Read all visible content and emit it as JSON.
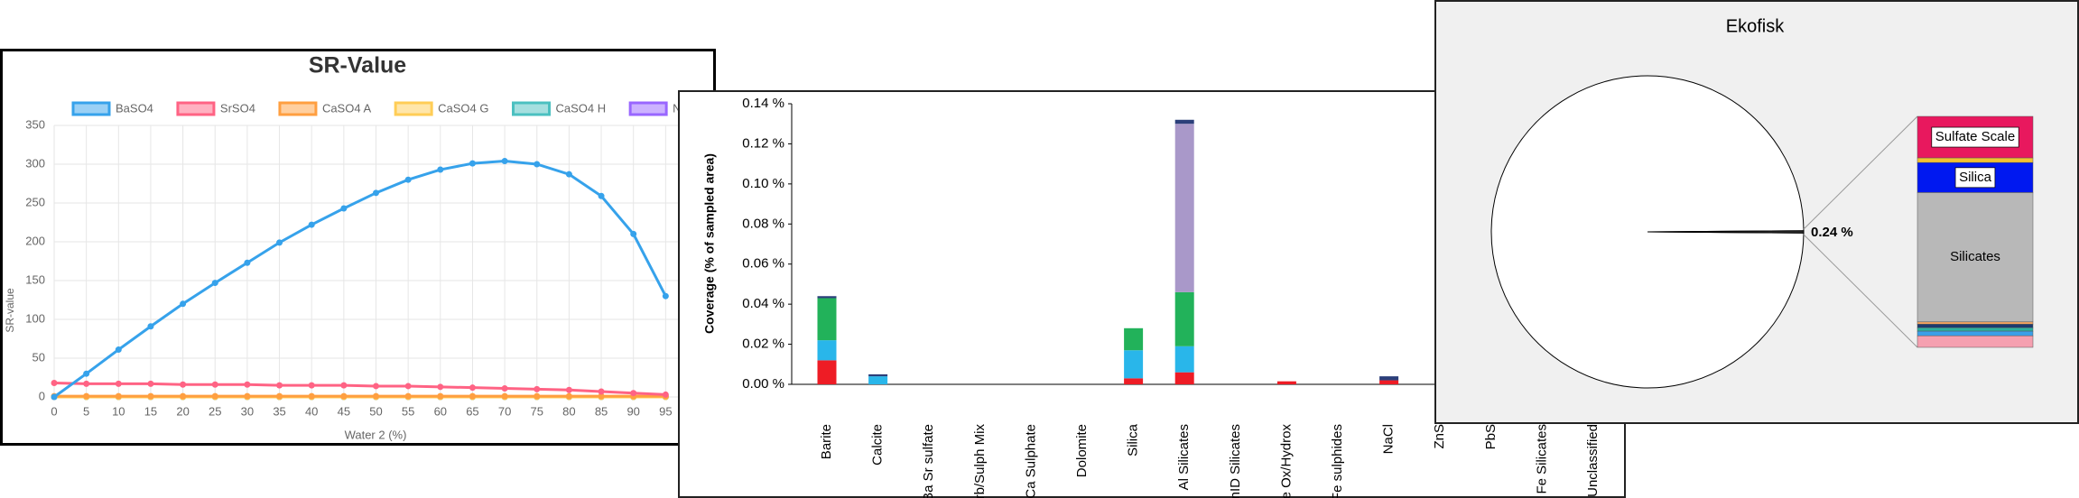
{
  "chart_data": [
    {
      "type": "line",
      "title": "SR-Value",
      "xlabel": "Water 2 (%)",
      "ylabel": "SR-value",
      "x": [
        0,
        5,
        10,
        15,
        20,
        25,
        30,
        35,
        40,
        45,
        50,
        55,
        60,
        65,
        70,
        75,
        80,
        85,
        90,
        95
      ],
      "xlim": [
        0,
        100
      ],
      "xticks": [
        0,
        5,
        10,
        15,
        20,
        25,
        30,
        35,
        40,
        45,
        50,
        55,
        60,
        65,
        70,
        75,
        80,
        85,
        90,
        95
      ],
      "ylim": [
        0,
        350
      ],
      "yticks": [
        0,
        50,
        100,
        150,
        200,
        250,
        300,
        350
      ],
      "grid": true,
      "legend": "top",
      "series": [
        {
          "name": "BaSO4",
          "color": "#36a2eb",
          "values": [
            0,
            30,
            61,
            91,
            120,
            147,
            173,
            199,
            222,
            243,
            263,
            280,
            293,
            301,
            304,
            300,
            287,
            259,
            210,
            130
          ]
        },
        {
          "name": "SrSO4",
          "color": "#ff6384",
          "values": [
            18,
            17,
            17,
            17,
            16,
            16,
            16,
            15,
            15,
            15,
            14,
            14,
            13,
            12,
            11,
            10,
            9,
            7,
            5,
            3
          ]
        },
        {
          "name": "CaSO4 A",
          "color": "#ff9f40",
          "values": [
            1,
            1,
            1,
            1,
            1,
            1,
            1,
            1,
            1,
            1,
            1,
            1,
            1,
            1,
            1,
            1,
            1,
            1,
            1,
            1
          ]
        },
        {
          "name": "CaSO4 G",
          "color": "#ffcd56",
          "values": [
            0,
            0,
            0,
            0,
            0,
            0,
            0,
            0,
            0,
            0,
            0,
            0,
            0,
            0,
            0,
            0,
            0,
            0,
            0,
            0
          ]
        },
        {
          "name": "CaSO4 H",
          "color": "#4bc0c0",
          "values": [
            0,
            0,
            0,
            0,
            0,
            0,
            0,
            0,
            0,
            0,
            0,
            0,
            0,
            0,
            0,
            0,
            0,
            0,
            0,
            0
          ]
        },
        {
          "name": "NaCl",
          "color": "#9966ff",
          "values": [
            0,
            0,
            0,
            0,
            0,
            0,
            0,
            0,
            0,
            0,
            0,
            0,
            0,
            0,
            0,
            0,
            0,
            0,
            0,
            0
          ]
        }
      ]
    },
    {
      "type": "bar",
      "stacked": true,
      "ylabel": "Coverage (% of sampled area)",
      "categories": [
        "Barite",
        "Calcite",
        "Ba Sr sulfate",
        "Carb/Sulph Mix",
        "Ca Sulphate",
        "Dolomite",
        "Silica",
        "Al Silicates",
        "UnID Silicates",
        "Fe Ox/Hydrox",
        "Fe sulphides",
        "NaCl",
        "ZnS",
        "PbS",
        "Fe Silicates",
        "Unclassified"
      ],
      "ylim": [
        0,
        0.14
      ],
      "yticks": [
        {
          "value": 0,
          "label": "0.00 %"
        },
        {
          "value": 0.02,
          "label": "0.02 %"
        },
        {
          "value": 0.04,
          "label": "0.04 %"
        },
        {
          "value": 0.06,
          "label": "0.06 %"
        },
        {
          "value": 0.08,
          "label": "0.08 %"
        },
        {
          "value": 0.1,
          "label": "0.10 %"
        },
        {
          "value": 0.12,
          "label": "0.12 %"
        },
        {
          "value": 0.14,
          "label": "0.14 %"
        }
      ],
      "series": [
        {
          "color": "#ee1c25",
          "values": [
            0.012,
            0,
            0,
            0,
            0,
            0,
            0.003,
            0.006,
            0,
            0.0015,
            0,
            0.002,
            0,
            0,
            0,
            0
          ]
        },
        {
          "color": "#29b6ea",
          "values": [
            0.01,
            0.004,
            0,
            0,
            0,
            0,
            0.014,
            0.013,
            0,
            0,
            0,
            0,
            0,
            0,
            0,
            0
          ]
        },
        {
          "color": "#22b25a",
          "values": [
            0.021,
            0,
            0,
            0,
            0,
            0,
            0.011,
            0.027,
            0,
            0,
            0,
            0,
            0,
            0,
            0,
            0
          ]
        },
        {
          "color": "#a998c9",
          "values": [
            0,
            0,
            0,
            0,
            0,
            0,
            0,
            0.084,
            0,
            0,
            0,
            0,
            0,
            0,
            0,
            0
          ]
        },
        {
          "color": "#2b3f7a",
          "values": [
            0.001,
            0.001,
            0,
            0,
            0,
            0,
            0,
            0.002,
            0,
            0,
            0,
            0.002,
            0,
            0,
            0,
            0
          ]
        }
      ]
    },
    {
      "type": "pie",
      "title": "Ekofisk",
      "values": [
        99.76,
        0.24
      ],
      "value_labels": [
        null,
        "0.24 %"
      ],
      "colors": [
        "#ffffff",
        "#333333"
      ],
      "breakdown": {
        "labels": [
          "Sulfate Scale",
          null,
          "Silica",
          "Silicates",
          null,
          null,
          null,
          null,
          null
        ],
        "values": [
          18,
          2,
          13,
          56,
          1,
          1.5,
          1.5,
          2,
          5
        ],
        "colors": [
          "#e8185e",
          "#f2c230",
          "#0018f0",
          "#b8b8b8",
          "#f4a460",
          "#1f3a6e",
          "#2ab0a0",
          "#3aa0e8",
          "#f5a0b0"
        ]
      }
    }
  ]
}
